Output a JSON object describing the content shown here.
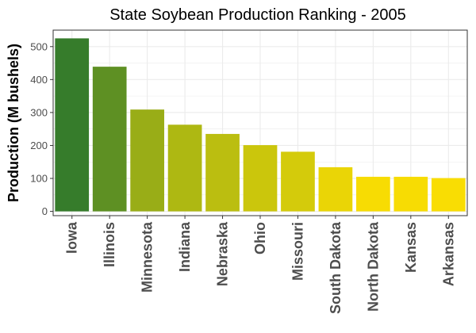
{
  "chart_data": {
    "type": "bar",
    "title": "State Soybean Production Ranking - 2005",
    "xlabel": "",
    "ylabel": "Production (M bushels)",
    "categories": [
      "Iowa",
      "Illinois",
      "Minnesota",
      "Indiana",
      "Nebraska",
      "Ohio",
      "Missouri",
      "South Dakota",
      "North Dakota",
      "Kansas",
      "Arkansas"
    ],
    "values": [
      525,
      439,
      309,
      263,
      235,
      201,
      181,
      134,
      105,
      105,
      101
    ],
    "yticks": [
      0,
      100,
      200,
      300,
      400,
      500
    ],
    "ylim": [
      -13,
      550
    ],
    "grid": true,
    "legend": "none",
    "color_low": "#f9dd03",
    "color_high": "#367c2b",
    "panel_border": "#333333",
    "grid_color": "#ebebeb"
  }
}
